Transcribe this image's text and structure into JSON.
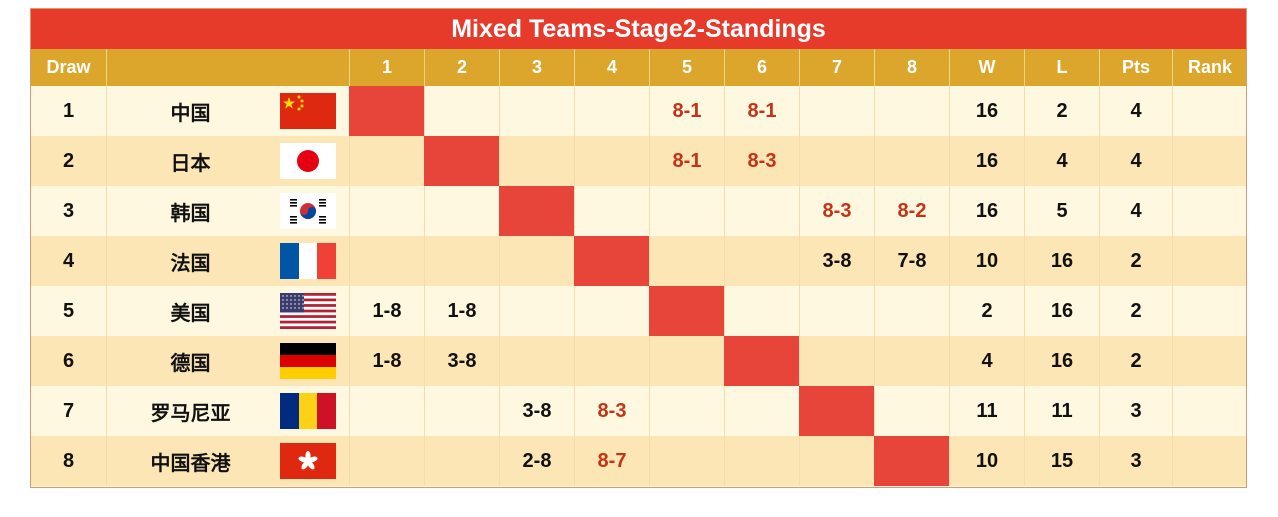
{
  "title": "Mixed Teams-Stage2-Standings",
  "header": {
    "draw": "Draw",
    "team_watermark": "",
    "rounds": [
      "1",
      "2",
      "3",
      "4",
      "5",
      "6",
      "7",
      "8"
    ],
    "w": "W",
    "l": "L",
    "pts": "Pts",
    "rank": "Rank"
  },
  "rows": [
    {
      "draw": "1",
      "team": "中国",
      "flag": "china-flag-icon",
      "scores": [
        "",
        "",
        "",
        "",
        "8-1",
        "8-1",
        "",
        ""
      ],
      "w": "16",
      "l": "2",
      "pts": "4",
      "rank": ""
    },
    {
      "draw": "2",
      "team": "日本",
      "flag": "japan-flag-icon",
      "scores": [
        "",
        "",
        "",
        "",
        "8-1",
        "8-3",
        "",
        ""
      ],
      "w": "16",
      "l": "4",
      "pts": "4",
      "rank": ""
    },
    {
      "draw": "3",
      "team": "韩国",
      "flag": "korea-flag-icon",
      "scores": [
        "",
        "",
        "",
        "",
        "",
        "",
        "8-3",
        "8-2"
      ],
      "w": "16",
      "l": "5",
      "pts": "4",
      "rank": ""
    },
    {
      "draw": "4",
      "team": "法国",
      "flag": "france-flag-icon",
      "scores": [
        "",
        "",
        "",
        "",
        "",
        "",
        "3-8",
        "7-8"
      ],
      "w": "10",
      "l": "16",
      "pts": "2",
      "rank": ""
    },
    {
      "draw": "5",
      "team": "美国",
      "flag": "usa-flag-icon",
      "scores": [
        "1-8",
        "1-8",
        "",
        "",
        "",
        "",
        "",
        ""
      ],
      "w": "2",
      "l": "16",
      "pts": "2",
      "rank": ""
    },
    {
      "draw": "6",
      "team": "德国",
      "flag": "germany-flag-icon",
      "scores": [
        "1-8",
        "3-8",
        "",
        "",
        "",
        "",
        "",
        ""
      ],
      "w": "4",
      "l": "16",
      "pts": "2",
      "rank": ""
    },
    {
      "draw": "7",
      "team": "罗马尼亚",
      "flag": "romania-flag-icon",
      "scores": [
        "",
        "",
        "3-8",
        "8-3",
        "",
        "",
        "",
        ""
      ],
      "w": "11",
      "l": "11",
      "pts": "3",
      "rank": ""
    },
    {
      "draw": "8",
      "team": "中国香港",
      "flag": "hong-kong-flag-icon",
      "scores": [
        "",
        "",
        "2-8",
        "8-7",
        "",
        "",
        "",
        ""
      ],
      "w": "10",
      "l": "15",
      "pts": "3",
      "rank": ""
    }
  ],
  "colors": {
    "title_bg": "#e63a2a",
    "header_bg": "#dca62c",
    "row_light": "#fff8e0",
    "row_dark": "#fde6b5",
    "diagonal": "#e8453a",
    "win_score": "#c33318",
    "text": "#111111"
  }
}
